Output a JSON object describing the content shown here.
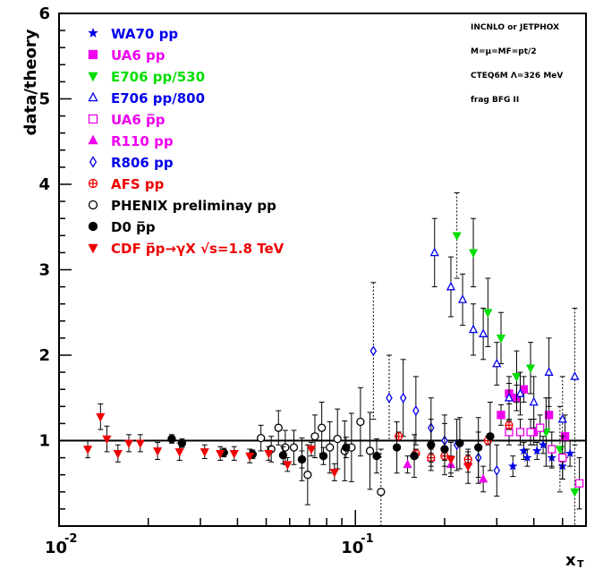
{
  "chart_data": {
    "type": "scatter",
    "xscale": "log",
    "xlim": [
      0.01,
      0.6
    ],
    "ylim": [
      0,
      6
    ],
    "xlabel": "x_T",
    "ylabel": "data/theory",
    "grid": false,
    "legend_position": "top-left",
    "reference_line": 1,
    "x_tick_labels": [
      {
        "x": 0.01,
        "base": "10",
        "exp": "-2"
      },
      {
        "x": 0.1,
        "base": "10",
        "exp": "-1"
      }
    ],
    "y_ticks": [
      1,
      2,
      3,
      4,
      5,
      6
    ],
    "y_tick_labels": [
      "1",
      "2",
      "3",
      "4",
      "5",
      "6"
    ],
    "notes": [
      "INCNLO or JETPHOX",
      "M=μ=MF=pt/2",
      "CTEQ6M Λ=326 MeV",
      "frag  BFG II"
    ],
    "series": [
      {
        "name": "WA70 pp",
        "color": "#0000ee",
        "marker": "star",
        "filled": true,
        "points": [
          [
            0.34,
            0.7,
            0.12
          ],
          [
            0.37,
            0.88,
            0.1
          ],
          [
            0.38,
            0.8,
            0.1
          ],
          [
            0.41,
            0.88,
            0.1
          ],
          [
            0.43,
            0.95,
            0.1
          ],
          [
            0.46,
            0.8,
            0.12
          ],
          [
            0.5,
            0.7,
            0.15
          ],
          [
            0.53,
            0.85,
            0.15
          ]
        ]
      },
      {
        "name": "UA6 pp",
        "color": "#ee00ee",
        "marker": "square",
        "filled": true,
        "points": [
          [
            0.31,
            1.3,
            0.12
          ],
          [
            0.33,
            1.55,
            0.12
          ],
          [
            0.35,
            1.5,
            0.15
          ],
          [
            0.37,
            1.6,
            0.15
          ],
          [
            0.4,
            1.1,
            0.15
          ],
          [
            0.45,
            1.3,
            0.2
          ],
          [
            0.51,
            1.05,
            0.25
          ]
        ]
      },
      {
        "name": "E706 pp/530",
        "color": "#00dd00",
        "marker": "triangle-down",
        "filled": true,
        "points": [
          [
            0.22,
            3.4,
            0.5
          ],
          [
            0.25,
            3.2,
            0.4
          ],
          [
            0.28,
            2.5,
            0.4
          ],
          [
            0.31,
            2.2,
            0.3
          ],
          [
            0.35,
            1.75,
            0.3
          ],
          [
            0.39,
            1.85,
            0.3
          ],
          [
            0.44,
            1.1,
            0.4
          ],
          [
            0.49,
            0.9,
            0.5
          ],
          [
            0.55,
            0.4,
            0.6
          ]
        ]
      },
      {
        "name": "E706 pp/800",
        "color": "#0000ee",
        "marker": "triangle-up",
        "filled": false,
        "points": [
          [
            0.185,
            3.2,
            0.4
          ],
          [
            0.21,
            2.8,
            0.35
          ],
          [
            0.23,
            2.65,
            0.3
          ],
          [
            0.25,
            2.3,
            0.3
          ],
          [
            0.27,
            2.25,
            0.3
          ],
          [
            0.3,
            1.9,
            0.25
          ],
          [
            0.33,
            1.5,
            0.25
          ],
          [
            0.36,
            1.55,
            0.25
          ],
          [
            0.4,
            1.45,
            0.3
          ],
          [
            0.45,
            1.8,
            0.4
          ],
          [
            0.5,
            1.25,
            0.5
          ],
          [
            0.55,
            1.75,
            0.8
          ]
        ]
      },
      {
        "name": "UA6 p̅p",
        "color": "#ee00ee",
        "marker": "square",
        "filled": false,
        "points": [
          [
            0.33,
            1.1,
            0.15
          ],
          [
            0.36,
            1.1,
            0.15
          ],
          [
            0.39,
            1.1,
            0.15
          ],
          [
            0.42,
            1.15,
            0.15
          ],
          [
            0.46,
            0.9,
            0.2
          ],
          [
            0.5,
            0.8,
            0.25
          ],
          [
            0.57,
            0.5,
            0.3
          ]
        ]
      },
      {
        "name": "R110 pp",
        "color": "#ee00ee",
        "marker": "triangle-up",
        "filled": true,
        "points": [
          [
            0.15,
            0.72,
            0.1
          ],
          [
            0.18,
            0.8,
            0.1
          ],
          [
            0.21,
            0.72,
            0.1
          ],
          [
            0.24,
            0.75,
            0.12
          ],
          [
            0.27,
            0.55,
            0.15
          ]
        ]
      },
      {
        "name": "R806 pp",
        "color": "#0000ee",
        "marker": "diamond",
        "filled": false,
        "points": [
          [
            0.115,
            2.05,
            0.8
          ],
          [
            0.13,
            1.5,
            0.5
          ],
          [
            0.145,
            1.5,
            0.45
          ],
          [
            0.16,
            1.35,
            0.4
          ],
          [
            0.18,
            1.15,
            0.35
          ],
          [
            0.2,
            1.0,
            0.3
          ],
          [
            0.22,
            0.95,
            0.3
          ],
          [
            0.26,
            0.8,
            0.3
          ],
          [
            0.3,
            0.65,
            0.3
          ]
        ]
      },
      {
        "name": "AFS pp",
        "color": "#ee0000",
        "marker": "cross-circle",
        "filled": false,
        "points": [
          [
            0.14,
            1.05,
            0.05
          ],
          [
            0.16,
            0.85,
            0.05
          ],
          [
            0.18,
            0.8,
            0.05
          ],
          [
            0.2,
            0.82,
            0.05
          ],
          [
            0.24,
            0.78,
            0.05
          ],
          [
            0.28,
            1.0,
            0.05
          ],
          [
            0.33,
            1.18,
            0.05
          ]
        ]
      },
      {
        "name": "PHENIX preliminay pp",
        "color": "#000000",
        "marker": "circle",
        "filled": false,
        "points": [
          [
            0.048,
            1.03,
            0.15
          ],
          [
            0.052,
            0.9,
            0.15
          ],
          [
            0.055,
            1.15,
            0.2
          ],
          [
            0.058,
            0.92,
            0.2
          ],
          [
            0.062,
            0.92,
            0.2
          ],
          [
            0.066,
            0.78,
            0.25
          ],
          [
            0.069,
            0.6,
            0.35
          ],
          [
            0.073,
            1.05,
            0.25
          ],
          [
            0.077,
            1.15,
            0.3
          ],
          [
            0.082,
            0.92,
            0.3
          ],
          [
            0.087,
            1.02,
            0.35
          ],
          [
            0.092,
            0.88,
            0.35
          ],
          [
            0.097,
            0.92,
            0.4
          ],
          [
            0.104,
            1.22,
            0.4
          ],
          [
            0.112,
            0.88,
            0.45
          ],
          [
            0.122,
            0.4,
            0.5
          ]
        ]
      },
      {
        "name": "D0 p̅p",
        "color": "#000000",
        "marker": "circle",
        "filled": true,
        "points": [
          [
            0.024,
            1.02,
            0.05
          ],
          [
            0.026,
            0.97,
            0.05
          ],
          [
            0.036,
            0.86,
            0.05
          ],
          [
            0.045,
            0.84,
            0.05
          ],
          [
            0.057,
            0.83,
            0.1
          ],
          [
            0.066,
            0.78,
            0.1
          ],
          [
            0.078,
            0.82,
            0.1
          ],
          [
            0.093,
            0.92,
            0.12
          ],
          [
            0.118,
            0.82,
            0.2
          ],
          [
            0.138,
            0.92,
            0.3
          ],
          [
            0.158,
            0.82,
            0.25
          ],
          [
            0.18,
            0.95,
            0.3
          ],
          [
            0.2,
            0.9,
            0.3
          ],
          [
            0.225,
            0.97,
            0.3
          ],
          [
            0.26,
            0.92,
            0.35
          ],
          [
            0.285,
            1.05,
            0.4
          ]
        ]
      },
      {
        "name": "CDF p̅p→γX √s=1.8 TeV",
        "color": "#ee0000",
        "marker": "triangle-down",
        "filled": true,
        "points": [
          [
            0.0125,
            0.9,
            0.1
          ],
          [
            0.0138,
            1.28,
            0.15
          ],
          [
            0.0145,
            1.02,
            0.15
          ],
          [
            0.0158,
            0.85,
            0.1
          ],
          [
            0.0172,
            0.97,
            0.1
          ],
          [
            0.0188,
            0.97,
            0.1
          ],
          [
            0.0215,
            0.88,
            0.1
          ],
          [
            0.0255,
            0.87,
            0.1
          ],
          [
            0.031,
            0.87,
            0.08
          ],
          [
            0.035,
            0.85,
            0.08
          ],
          [
            0.039,
            0.85,
            0.08
          ],
          [
            0.044,
            0.82,
            0.08
          ],
          [
            0.051,
            0.85,
            0.08
          ],
          [
            0.059,
            0.72,
            0.08
          ],
          [
            0.071,
            0.9,
            0.08
          ],
          [
            0.085,
            0.63,
            0.1
          ],
          [
            0.21,
            0.78,
            0.2
          ],
          [
            0.24,
            0.7,
            0.2
          ]
        ]
      }
    ]
  }
}
